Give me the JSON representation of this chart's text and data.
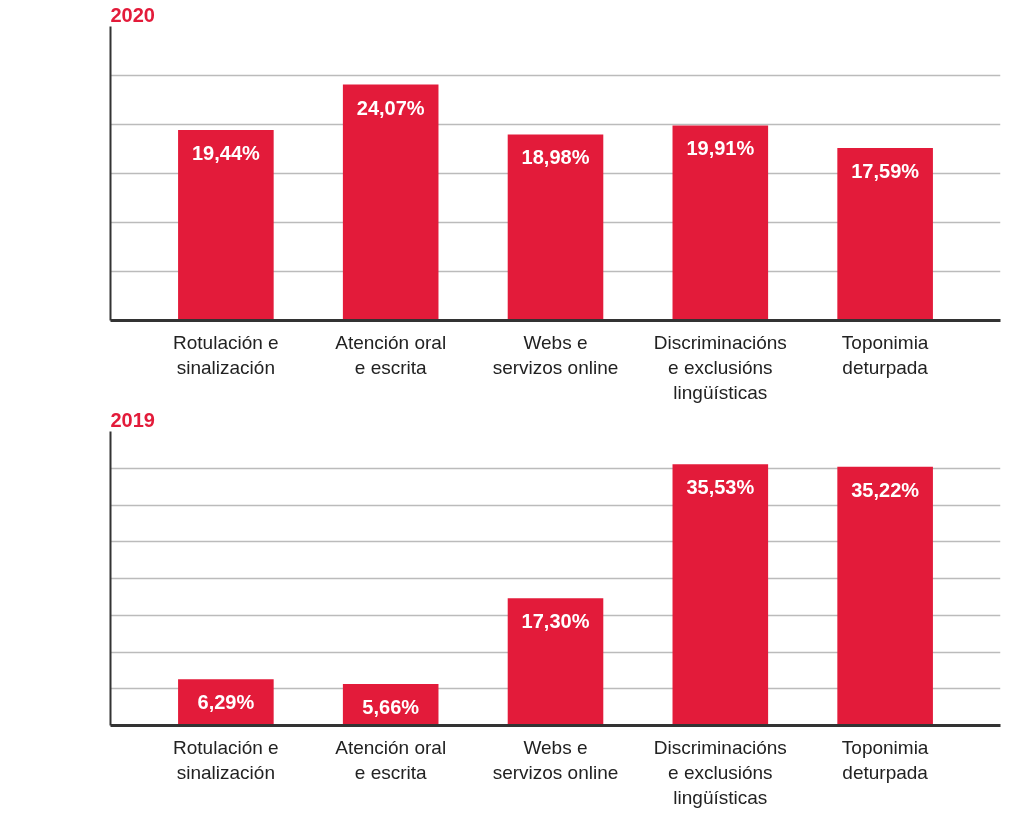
{
  "chart_data": [
    {
      "type": "bar",
      "title": "2020",
      "categories": [
        "Rotulación e\nsinalización",
        "Atención oral\ne escrita",
        "Webs e\nservizos online",
        "Discriminacións\ne exclusións\nlingüísticas",
        "Toponimia\ndeturpada"
      ],
      "values": [
        19.44,
        24.07,
        18.98,
        19.91,
        17.59
      ],
      "value_labels": [
        "19,44%",
        "24,07%",
        "18,98%",
        "19,91%",
        "17,59%"
      ],
      "color": "#e31b3a",
      "ylim": [
        0,
        30
      ],
      "yticks": [
        {
          "value": 0,
          "label": null
        },
        {
          "value": 5,
          "label": null
        },
        {
          "value": 10,
          "label": null
        },
        {
          "value": 15,
          "label": null
        },
        {
          "value": 20,
          "label": null
        },
        {
          "value": 25,
          "label": null
        }
      ],
      "grid": "y",
      "tick_labels": "x"
    },
    {
      "type": "bar",
      "title": "2019",
      "categories": [
        "Rotulación e\nsinalización",
        "Atención oral\ne escrita",
        "Webs e\nservizos online",
        "Discriminacións\ne exclusións\nlingüísticas",
        "Toponimia\ndeturpada"
      ],
      "values": [
        6.29,
        5.66,
        17.3,
        35.53,
        35.22
      ],
      "value_labels": [
        "6,29%",
        "5,66%",
        "17,30%",
        "35,53%",
        "35,22%"
      ],
      "color": "#e31b3a",
      "ylim": [
        0,
        40
      ],
      "yticks": [
        {
          "value": 0,
          "label": null
        },
        {
          "value": 5,
          "label": null
        },
        {
          "value": 10,
          "label": null
        },
        {
          "value": 15,
          "label": null
        },
        {
          "value": 20,
          "label": null
        },
        {
          "value": 25,
          "label": null
        },
        {
          "value": 30,
          "label": null
        },
        {
          "value": 35,
          "label": null
        }
      ],
      "grid": "y",
      "tick_labels": "x"
    }
  ]
}
